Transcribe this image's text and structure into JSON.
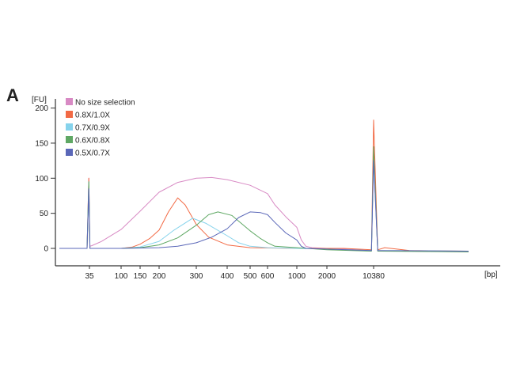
{
  "panel_label": "A",
  "chart_data": {
    "type": "line",
    "title": "",
    "xlabel": "[bp]",
    "ylabel": "[FU]",
    "x_scale": "electropherogram (non-linear, ladder-calibrated)",
    "ylim": [
      -20,
      210
    ],
    "y_ticks": [
      0,
      50,
      100,
      150,
      200
    ],
    "x_ticks": [
      35,
      100,
      150,
      200,
      300,
      400,
      500,
      600,
      1000,
      2000,
      10380
    ],
    "grid": false,
    "legend_position": "top-left",
    "series": [
      {
        "name": "No size selection",
        "color": "#d88ac4",
        "points": [
          [
            10,
            0
          ],
          [
            33,
            0
          ],
          [
            34.5,
            100
          ],
          [
            36,
            3
          ],
          [
            40,
            4
          ],
          [
            60,
            10
          ],
          [
            100,
            27
          ],
          [
            150,
            53
          ],
          [
            200,
            80
          ],
          [
            250,
            94
          ],
          [
            300,
            100
          ],
          [
            350,
            101
          ],
          [
            400,
            98
          ],
          [
            500,
            90
          ],
          [
            600,
            78
          ],
          [
            700,
            62
          ],
          [
            850,
            45
          ],
          [
            1000,
            30
          ],
          [
            1150,
            12
          ],
          [
            1300,
            3
          ],
          [
            1500,
            1
          ],
          [
            2000,
            0
          ],
          [
            5000,
            -1
          ],
          [
            10000,
            -3
          ],
          [
            10380,
            130
          ],
          [
            10800,
            -3
          ],
          [
            14000,
            -4
          ],
          [
            20000,
            -5
          ]
        ]
      },
      {
        "name": "0.8X/1.0X",
        "color": "#f26a45",
        "points": [
          [
            10,
            0
          ],
          [
            33,
            0
          ],
          [
            34.5,
            100
          ],
          [
            36,
            0
          ],
          [
            100,
            0
          ],
          [
            130,
            2
          ],
          [
            150,
            6
          ],
          [
            175,
            14
          ],
          [
            200,
            26
          ],
          [
            225,
            52
          ],
          [
            250,
            72
          ],
          [
            270,
            62
          ],
          [
            300,
            34
          ],
          [
            340,
            16
          ],
          [
            400,
            5
          ],
          [
            500,
            1
          ],
          [
            1000,
            0
          ],
          [
            2000,
            0
          ],
          [
            5000,
            0
          ],
          [
            10000,
            -2
          ],
          [
            10380,
            183
          ],
          [
            10800,
            -2
          ],
          [
            11500,
            1
          ],
          [
            14000,
            -3
          ],
          [
            20000,
            -4
          ]
        ]
      },
      {
        "name": "0.7X/0.9X",
        "color": "#86d3ec",
        "points": [
          [
            10,
            0
          ],
          [
            33,
            0
          ],
          [
            34.5,
            95
          ],
          [
            36,
            0
          ],
          [
            100,
            0
          ],
          [
            150,
            2
          ],
          [
            200,
            10
          ],
          [
            240,
            26
          ],
          [
            290,
            43
          ],
          [
            330,
            36
          ],
          [
            400,
            18
          ],
          [
            450,
            8
          ],
          [
            500,
            3
          ],
          [
            600,
            1
          ],
          [
            1000,
            0
          ],
          [
            2000,
            -1
          ],
          [
            10000,
            -3
          ],
          [
            10380,
            130
          ],
          [
            10800,
            -3
          ],
          [
            20000,
            -4
          ]
        ]
      },
      {
        "name": "0.6X/0.8X",
        "color": "#5fa864",
        "points": [
          [
            10,
            0
          ],
          [
            33,
            0
          ],
          [
            34.5,
            95
          ],
          [
            36,
            0
          ],
          [
            100,
            0
          ],
          [
            150,
            1
          ],
          [
            200,
            5
          ],
          [
            250,
            15
          ],
          [
            300,
            33
          ],
          [
            340,
            48
          ],
          [
            370,
            52
          ],
          [
            420,
            47
          ],
          [
            500,
            25
          ],
          [
            560,
            14
          ],
          [
            600,
            8
          ],
          [
            700,
            3
          ],
          [
            1000,
            1
          ],
          [
            2000,
            -2
          ],
          [
            10000,
            -4
          ],
          [
            10380,
            145
          ],
          [
            10800,
            -4
          ],
          [
            20000,
            -5
          ]
        ]
      },
      {
        "name": "0.5X/0.7X",
        "color": "#5a67b8",
        "points": [
          [
            10,
            0
          ],
          [
            33,
            0
          ],
          [
            34.5,
            85
          ],
          [
            36,
            0
          ],
          [
            100,
            0
          ],
          [
            200,
            1
          ],
          [
            250,
            3
          ],
          [
            300,
            8
          ],
          [
            350,
            16
          ],
          [
            400,
            28
          ],
          [
            450,
            44
          ],
          [
            500,
            52
          ],
          [
            560,
            51
          ],
          [
            600,
            48
          ],
          [
            700,
            37
          ],
          [
            850,
            22
          ],
          [
            1000,
            12
          ],
          [
            1150,
            3
          ],
          [
            1300,
            0
          ],
          [
            2000,
            -1
          ],
          [
            10000,
            -3
          ],
          [
            10380,
            125
          ],
          [
            10800,
            -3
          ],
          [
            20000,
            -4
          ]
        ]
      }
    ]
  }
}
